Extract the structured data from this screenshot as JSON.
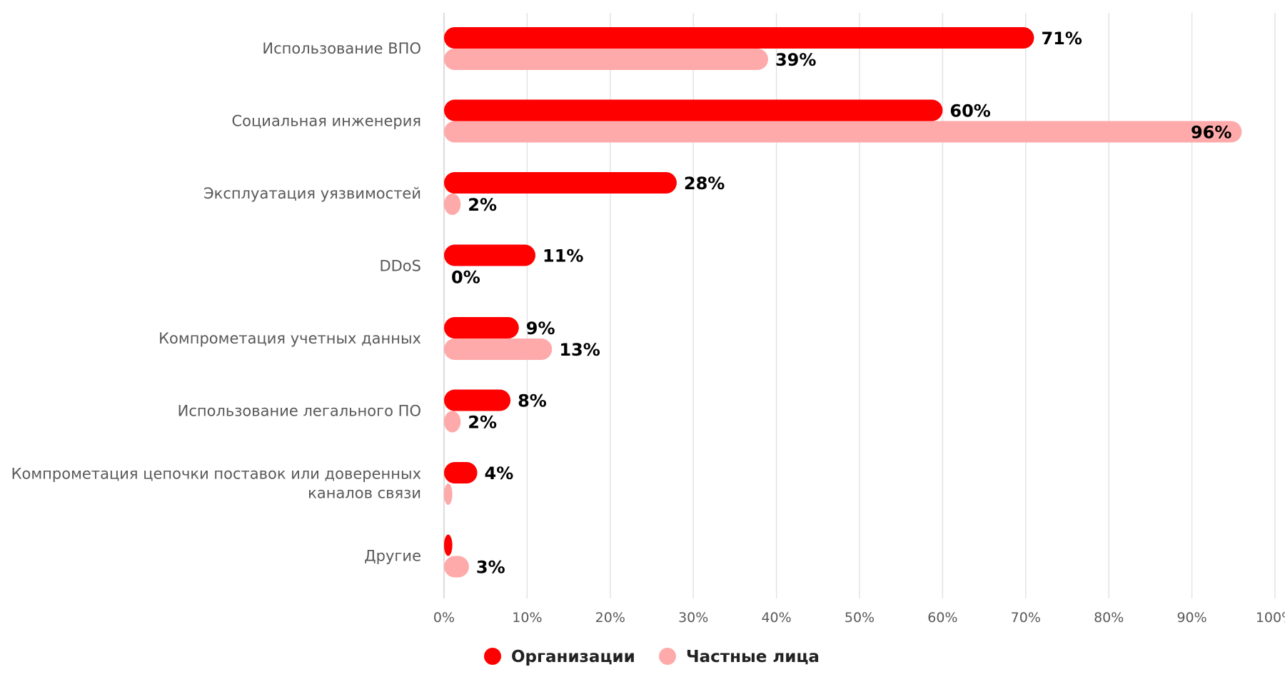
{
  "chart_data": {
    "type": "bar",
    "orientation": "horizontal",
    "categories": [
      [
        "Использование ВПО"
      ],
      [
        "Социальная инженерия"
      ],
      [
        "Эксплуатация уязвимостей"
      ],
      [
        "DDoS"
      ],
      [
        "Компрометация учетных данных"
      ],
      [
        "Использование легального ПО"
      ],
      [
        "Компрометация цепочки поставок или доверенных",
        "каналов связи"
      ],
      [
        "Другие"
      ]
    ],
    "series": [
      {
        "name": "Организации",
        "color": "#ff0000",
        "values": [
          71,
          60,
          28,
          11,
          9,
          8,
          4,
          1
        ],
        "labels": [
          "71%",
          "60%",
          "28%",
          "11%",
          "9%",
          "8%",
          "4%",
          ""
        ]
      },
      {
        "name": "Частные лица",
        "color": "#ffaaaa",
        "values": [
          39,
          96,
          2,
          0,
          13,
          2,
          1,
          3
        ],
        "labels": [
          "39%",
          "96%",
          "2%",
          "0%",
          "13%",
          "2%",
          "",
          "3%"
        ]
      }
    ],
    "x_ticks": [
      "0%",
      "10%",
      "20%",
      "30%",
      "40%",
      "50%",
      "60%",
      "70%",
      "80%",
      "90%",
      "100%"
    ],
    "xlim": [
      0,
      100
    ],
    "grid": true,
    "legend_position": "bottom"
  }
}
